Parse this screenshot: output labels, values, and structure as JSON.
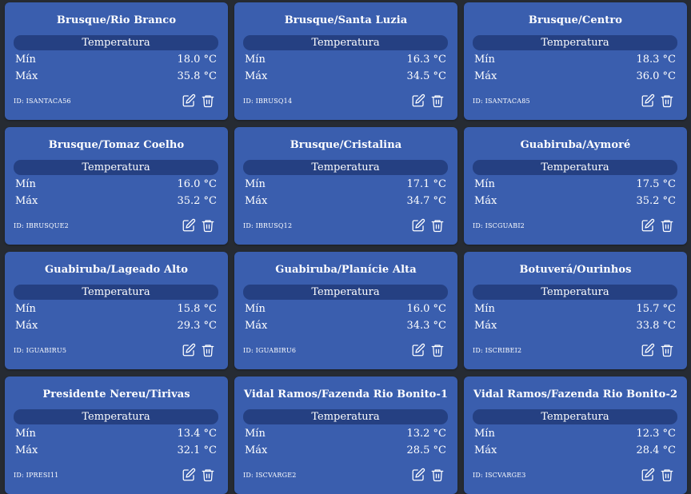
{
  "section_label": "Temperatura",
  "min_label": "Mín",
  "max_label": "Máx",
  "icons": {
    "edit": "edit-icon",
    "delete": "trash-icon"
  },
  "colors": {
    "page_bg": "#262b33",
    "card_bg": "#3a5eae",
    "pill_bg": "#254082",
    "text": "#ffffff"
  },
  "stations": [
    {
      "title": "Brusque/Rio Branco",
      "min": "18.0 °C",
      "max": "35.8 °C",
      "id": "ID: ISANTACA56"
    },
    {
      "title": "Brusque/Santa Luzia",
      "min": "16.3 °C",
      "max": "34.5 °C",
      "id": "ID: IBRUSQ14"
    },
    {
      "title": "Brusque/Centro",
      "min": "18.3 °C",
      "max": "36.0 °C",
      "id": "ID: ISANTACA85"
    },
    {
      "title": "Brusque/Tomaz Coelho",
      "min": "16.0 °C",
      "max": "35.2 °C",
      "id": "ID: IBRUSQUE2"
    },
    {
      "title": "Brusque/Cristalina",
      "min": "17.1 °C",
      "max": "34.7 °C",
      "id": "ID: IBRUSQ12"
    },
    {
      "title": "Guabiruba/Aymoré",
      "min": "17.5 °C",
      "max": "35.2 °C",
      "id": "ID: ISCGUABI2"
    },
    {
      "title": "Guabiruba/Lageado Alto",
      "min": "15.8 °C",
      "max": "29.3 °C",
      "id": "ID: IGUABIRU5"
    },
    {
      "title": "Guabiruba/Planície Alta",
      "min": "16.0 °C",
      "max": "34.3 °C",
      "id": "ID: IGUABIRU6"
    },
    {
      "title": "Botuverá/Ourinhos",
      "min": "15.7 °C",
      "max": "33.8 °C",
      "id": "ID: ISCRIBEI2"
    },
    {
      "title": "Presidente Nereu/Tirivas",
      "min": "13.4 °C",
      "max": "32.1 °C",
      "id": "ID: IPRESI11"
    },
    {
      "title": "Vidal Ramos/Fazenda Rio Bonito-1",
      "min": "13.2 °C",
      "max": "28.5 °C",
      "id": "ID: ISCVARGE2"
    },
    {
      "title": "Vidal Ramos/Fazenda Rio Bonito-2",
      "min": "12.3 °C",
      "max": "28.4 °C",
      "id": "ID: ISCVARGE3"
    }
  ]
}
